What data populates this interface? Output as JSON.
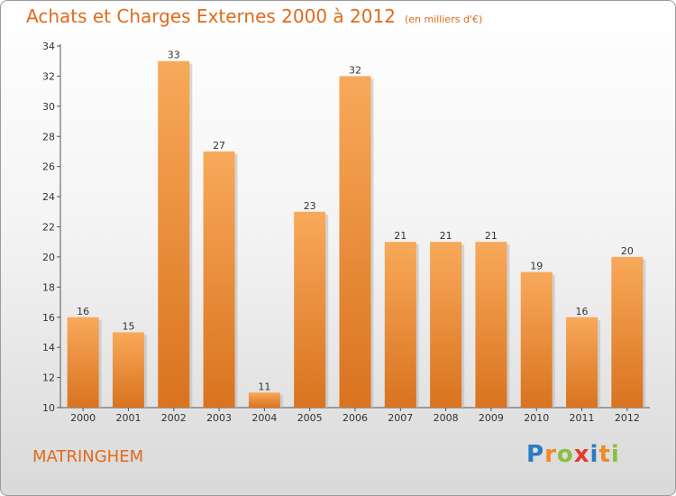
{
  "header": {
    "title": "Achats et Charges Externes 2000 à 2012",
    "subtitle": "(en milliers d'€)"
  },
  "footer": {
    "commune": "MATRINGHEM"
  },
  "logo": {
    "letters": [
      "P",
      "r",
      "o",
      "x",
      "i",
      "t",
      "i"
    ],
    "colors": [
      "#2B7BC0",
      "#F08A24",
      "#8CBF3F",
      "#E33A2E",
      "#2B7BC0",
      "#F08A24",
      "#8CBF3F"
    ]
  },
  "colors": {
    "bar_light": "#F8A95A",
    "bar_dark": "#D9731F",
    "bar_shadow": "#B9B9B9",
    "axis": "#555555",
    "grid": "#cccccc"
  },
  "chart_data": {
    "type": "bar",
    "title": "Achats et Charges Externes 2000 à 2012",
    "subtitle": "(en milliers d'€)",
    "xlabel": "",
    "ylabel": "",
    "categories": [
      "2000",
      "2001",
      "2002",
      "2003",
      "2004",
      "2005",
      "2006",
      "2007",
      "2008",
      "2009",
      "2010",
      "2011",
      "2012"
    ],
    "values": [
      16,
      15,
      33,
      27,
      11,
      23,
      32,
      21,
      21,
      21,
      19,
      16,
      20
    ],
    "ylim": [
      10,
      34
    ],
    "yticks": [
      10,
      12,
      14,
      16,
      18,
      20,
      22,
      24,
      26,
      28,
      30,
      32,
      34
    ],
    "grid": false,
    "data_labels": true
  }
}
